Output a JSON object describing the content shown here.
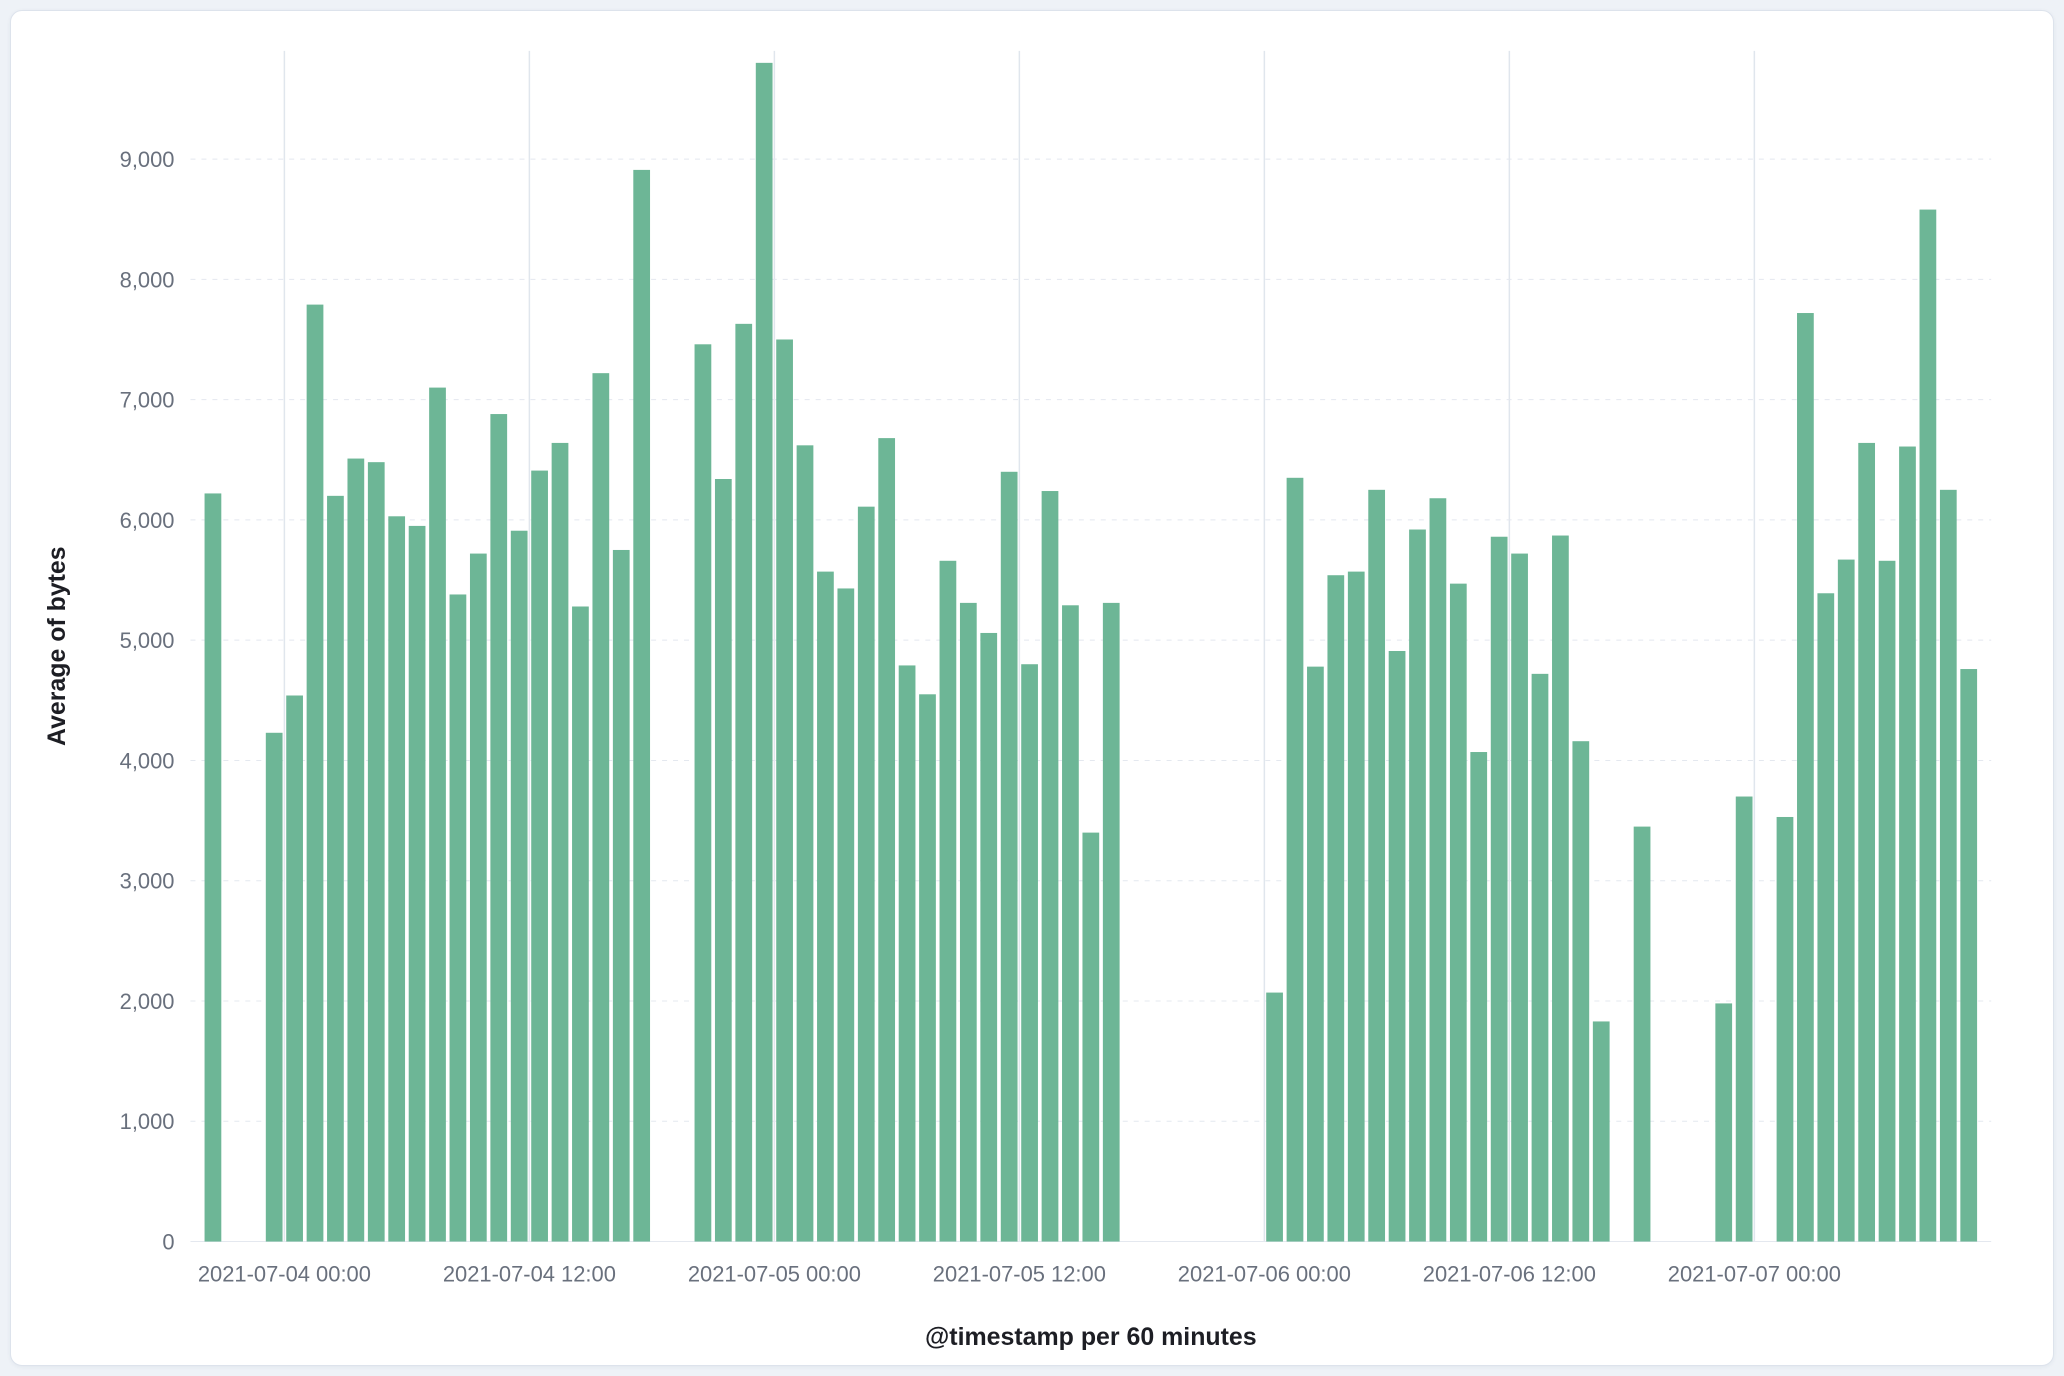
{
  "theme": {
    "page_bg": "#eef2f7",
    "panel_bg": "#ffffff",
    "panel_border": "#dde3ec",
    "grid_v_color": "#e0e6ed",
    "grid_h_color": "#e4e8ef",
    "tick_color": "#69707d",
    "title_color": "#1d1e24"
  },
  "chart_data": {
    "type": "bar",
    "title": "",
    "xlabel": "@timestamp per 60 minutes",
    "ylabel": "Average of bytes",
    "bar_color": "#6db696",
    "interval": "60 minutes",
    "ylim": [
      0,
      9900
    ],
    "y_ticks": [
      0,
      1000,
      2000,
      3000,
      4000,
      5000,
      6000,
      7000,
      8000,
      9000
    ],
    "y_tick_labels": [
      "0",
      "1,000",
      "2,000",
      "3,000",
      "4,000",
      "5,000",
      "6,000",
      "7,000",
      "8,000",
      "9,000"
    ],
    "hours_domain": [
      -0.6,
      87.6
    ],
    "x_ticks": [
      {
        "hour": 4,
        "label": "2021-07-04 00:00"
      },
      {
        "hour": 16,
        "label": "2021-07-04 12:00"
      },
      {
        "hour": 28,
        "label": "2021-07-05 00:00"
      },
      {
        "hour": 40,
        "label": "2021-07-05 12:00"
      },
      {
        "hour": 52,
        "label": "2021-07-06 00:00"
      },
      {
        "hour": 64,
        "label": "2021-07-06 12:00"
      },
      {
        "hour": 76,
        "label": "2021-07-07 00:00"
      }
    ],
    "bars": [
      {
        "h": 0,
        "time": "2021-07-03 20:00",
        "value": 6220
      },
      {
        "h": 3,
        "time": "2021-07-03 23:00",
        "value": 4230
      },
      {
        "h": 4,
        "time": "2021-07-04 00:00",
        "value": 4540
      },
      {
        "h": 5,
        "time": "2021-07-04 01:00",
        "value": 7790
      },
      {
        "h": 6,
        "time": "2021-07-04 02:00",
        "value": 6200
      },
      {
        "h": 7,
        "time": "2021-07-04 03:00",
        "value": 6510
      },
      {
        "h": 8,
        "time": "2021-07-04 04:00",
        "value": 6480
      },
      {
        "h": 9,
        "time": "2021-07-04 05:00",
        "value": 6030
      },
      {
        "h": 10,
        "time": "2021-07-04 06:00",
        "value": 5950
      },
      {
        "h": 11,
        "time": "2021-07-04 07:00",
        "value": 7100
      },
      {
        "h": 12,
        "time": "2021-07-04 08:00",
        "value": 5380
      },
      {
        "h": 13,
        "time": "2021-07-04 09:00",
        "value": 5720
      },
      {
        "h": 14,
        "time": "2021-07-04 10:00",
        "value": 6880
      },
      {
        "h": 15,
        "time": "2021-07-04 11:00",
        "value": 5910
      },
      {
        "h": 16,
        "time": "2021-07-04 12:00",
        "value": 6410
      },
      {
        "h": 17,
        "time": "2021-07-04 13:00",
        "value": 6640
      },
      {
        "h": 18,
        "time": "2021-07-04 14:00",
        "value": 5280
      },
      {
        "h": 19,
        "time": "2021-07-04 15:00",
        "value": 7220
      },
      {
        "h": 20,
        "time": "2021-07-04 16:00",
        "value": 5750
      },
      {
        "h": 21,
        "time": "2021-07-04 17:00",
        "value": 8910
      },
      {
        "h": 24,
        "time": "2021-07-04 20:00",
        "value": 7460
      },
      {
        "h": 25,
        "time": "2021-07-04 21:00",
        "value": 6340
      },
      {
        "h": 26,
        "time": "2021-07-04 22:00",
        "value": 7630
      },
      {
        "h": 27,
        "time": "2021-07-04 23:00",
        "value": 9800
      },
      {
        "h": 28,
        "time": "2021-07-05 00:00",
        "value": 7500
      },
      {
        "h": 29,
        "time": "2021-07-05 01:00",
        "value": 6620
      },
      {
        "h": 30,
        "time": "2021-07-05 02:00",
        "value": 5570
      },
      {
        "h": 31,
        "time": "2021-07-05 03:00",
        "value": 5430
      },
      {
        "h": 32,
        "time": "2021-07-05 04:00",
        "value": 6110
      },
      {
        "h": 33,
        "time": "2021-07-05 05:00",
        "value": 6680
      },
      {
        "h": 34,
        "time": "2021-07-05 06:00",
        "value": 4790
      },
      {
        "h": 35,
        "time": "2021-07-05 07:00",
        "value": 4550
      },
      {
        "h": 36,
        "time": "2021-07-05 08:00",
        "value": 5660
      },
      {
        "h": 37,
        "time": "2021-07-05 09:00",
        "value": 5310
      },
      {
        "h": 38,
        "time": "2021-07-05 10:00",
        "value": 5060
      },
      {
        "h": 39,
        "time": "2021-07-05 11:00",
        "value": 6400
      },
      {
        "h": 40,
        "time": "2021-07-05 12:00",
        "value": 4800
      },
      {
        "h": 41,
        "time": "2021-07-05 13:00",
        "value": 6240
      },
      {
        "h": 42,
        "time": "2021-07-05 14:00",
        "value": 5290
      },
      {
        "h": 43,
        "time": "2021-07-05 15:00",
        "value": 3400
      },
      {
        "h": 44,
        "time": "2021-07-05 16:00",
        "value": 5310
      },
      {
        "h": 52,
        "time": "2021-07-06 00:00",
        "value": 2070
      },
      {
        "h": 53,
        "time": "2021-07-06 01:00",
        "value": 6350
      },
      {
        "h": 54,
        "time": "2021-07-06 02:00",
        "value": 4780
      },
      {
        "h": 55,
        "time": "2021-07-06 03:00",
        "value": 5540
      },
      {
        "h": 56,
        "time": "2021-07-06 04:00",
        "value": 5570
      },
      {
        "h": 57,
        "time": "2021-07-06 05:00",
        "value": 6250
      },
      {
        "h": 58,
        "time": "2021-07-06 06:00",
        "value": 4910
      },
      {
        "h": 59,
        "time": "2021-07-06 07:00",
        "value": 5920
      },
      {
        "h": 60,
        "time": "2021-07-06 08:00",
        "value": 6180
      },
      {
        "h": 61,
        "time": "2021-07-06 09:00",
        "value": 5470
      },
      {
        "h": 62,
        "time": "2021-07-06 10:00",
        "value": 4070
      },
      {
        "h": 63,
        "time": "2021-07-06 11:00",
        "value": 5860
      },
      {
        "h": 64,
        "time": "2021-07-06 12:00",
        "value": 5720
      },
      {
        "h": 65,
        "time": "2021-07-06 13:00",
        "value": 4720
      },
      {
        "h": 66,
        "time": "2021-07-06 14:00",
        "value": 5870
      },
      {
        "h": 67,
        "time": "2021-07-06 15:00",
        "value": 4160
      },
      {
        "h": 68,
        "time": "2021-07-06 16:00",
        "value": 1830
      },
      {
        "h": 70,
        "time": "2021-07-06 18:00",
        "value": 3450
      },
      {
        "h": 74,
        "time": "2021-07-06 22:00",
        "value": 1980
      },
      {
        "h": 75,
        "time": "2021-07-06 23:00",
        "value": 3700
      },
      {
        "h": 77,
        "time": "2021-07-07 01:00",
        "value": 3530
      },
      {
        "h": 78,
        "time": "2021-07-07 02:00",
        "value": 7720
      },
      {
        "h": 79,
        "time": "2021-07-07 03:00",
        "value": 5390
      },
      {
        "h": 80,
        "time": "2021-07-07 04:00",
        "value": 5670
      },
      {
        "h": 81,
        "time": "2021-07-07 05:00",
        "value": 6640
      },
      {
        "h": 82,
        "time": "2021-07-07 06:00",
        "value": 5660
      },
      {
        "h": 83,
        "time": "2021-07-07 07:00",
        "value": 6610
      },
      {
        "h": 84,
        "time": "2021-07-07 08:00",
        "value": 8580
      },
      {
        "h": 85,
        "time": "2021-07-07 09:00",
        "value": 6250
      },
      {
        "h": 86,
        "time": "2021-07-07 10:00",
        "value": 4760
      }
    ]
  }
}
